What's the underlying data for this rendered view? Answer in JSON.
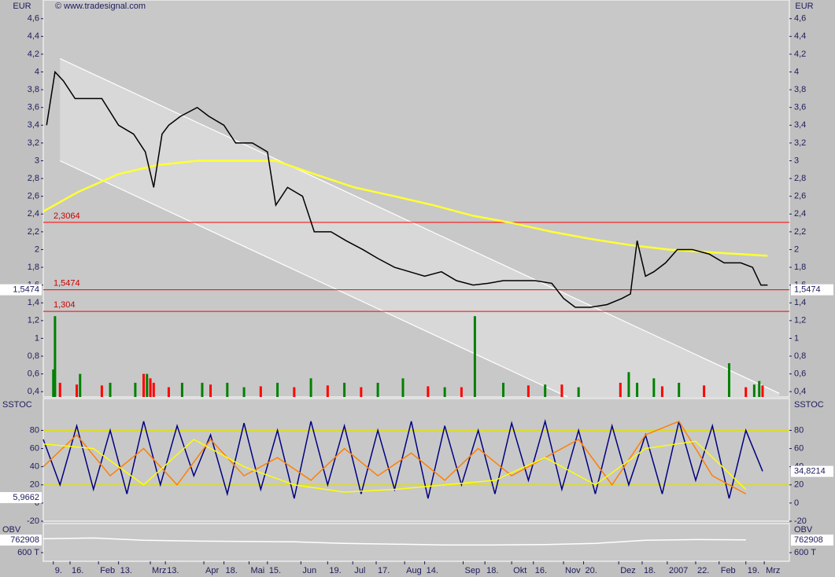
{
  "chart_data": [
    {
      "type": "line",
      "title": "© www.tradesignal.com",
      "ylabel": "EUR",
      "xlim": [
        0,
        446
      ],
      "ylim": [
        0.34,
        4.81
      ],
      "yticks": [
        {
          "value": 0.4,
          "label": "0,4"
        },
        {
          "value": 0.6,
          "label": "0,6"
        },
        {
          "value": 0.8,
          "label": "0,8"
        },
        1,
        {
          "value": 1.2,
          "label": "1,2"
        },
        {
          "value": 1.4,
          "label": "1,4"
        },
        {
          "value": 1.6,
          "label": "1,6"
        },
        {
          "value": 1.8,
          "label": "1,8"
        },
        2,
        {
          "value": 2.2,
          "label": "2,2"
        },
        {
          "value": 2.4,
          "label": "2,4"
        },
        {
          "value": 2.6,
          "label": "2,6"
        },
        {
          "value": 2.8,
          "label": "2,8"
        },
        3,
        {
          "value": 3.2,
          "label": "3,2"
        },
        {
          "value": 3.4,
          "label": "3,4"
        },
        {
          "value": 3.6,
          "label": "3,6"
        },
        {
          "value": 3.8,
          "label": "3,8"
        },
        4,
        {
          "value": 4.2,
          "label": "4,2"
        },
        {
          "value": 4.4,
          "label": "4,4"
        },
        {
          "value": 4.6,
          "label": "4,6"
        }
      ],
      "channel": {
        "x": [
          10,
          440
        ],
        "upper": [
          4.15,
          0.38
        ],
        "lower": [
          3.0,
          -0.77
        ]
      },
      "series": [
        {
          "color": "#ffff33",
          "x": [
            0,
            21,
            45,
            68,
            92,
            115,
            139,
            162,
            186,
            210,
            233,
            257,
            280,
            304,
            327,
            351,
            374,
            398,
            433
          ],
          "values": [
            2.43,
            2.65,
            2.85,
            2.95,
            3.0,
            3.0,
            3.0,
            2.85,
            2.7,
            2.6,
            2.5,
            2.38,
            2.3,
            2.2,
            2.12,
            2.05,
            2.0,
            1.97,
            1.93
          ]
        },
        {
          "color": "#000000",
          "x": [
            2,
            7,
            12,
            19,
            26,
            35,
            45,
            54,
            61,
            66,
            71,
            75,
            82,
            92,
            99,
            108,
            115,
            125,
            134,
            139,
            146,
            155,
            162,
            172,
            181,
            191,
            200,
            210,
            219,
            228,
            238,
            247,
            257,
            266,
            275,
            285,
            294,
            304,
            311,
            318,
            327,
            337,
            346,
            351,
            355,
            360,
            365,
            372,
            379,
            388,
            398,
            407,
            417,
            424,
            429,
            433
          ],
          "values": [
            3.4,
            4.0,
            3.9,
            3.7,
            3.7,
            3.7,
            3.4,
            3.3,
            3.1,
            2.7,
            3.3,
            3.4,
            3.5,
            3.6,
            3.5,
            3.4,
            3.2,
            3.2,
            3.1,
            2.5,
            2.7,
            2.6,
            2.2,
            2.2,
            2.1,
            2.0,
            1.9,
            1.8,
            1.75,
            1.7,
            1.75,
            1.65,
            1.6,
            1.62,
            1.65,
            1.65,
            1.65,
            1.62,
            1.45,
            1.35,
            1.35,
            1.38,
            1.45,
            1.5,
            2.1,
            1.7,
            1.75,
            1.85,
            2.0,
            2.0,
            1.95,
            1.85,
            1.85,
            1.8,
            1.6,
            1.6
          ]
        }
      ],
      "volume": [
        {
          "color": "#008000",
          "x": [
            6,
            7,
            22,
            40,
            55,
            62,
            83,
            95,
            110,
            120,
            140,
            160,
            180,
            200,
            215,
            240,
            258,
            275,
            300,
            320,
            350,
            355,
            365,
            380,
            410,
            425,
            428
          ],
          "values": [
            0.65,
            1.25,
            0.6,
            0.5,
            0.5,
            0.6,
            0.5,
            0.5,
            0.5,
            0.45,
            0.5,
            0.55,
            0.5,
            0.5,
            0.55,
            0.45,
            1.25,
            0.5,
            0.48,
            0.45,
            0.62,
            0.5,
            0.55,
            0.5,
            0.72,
            0.48,
            0.52
          ]
        },
        {
          "color": "#ff0000",
          "x": [
            10,
            20,
            35,
            60,
            64,
            66,
            75,
            100,
            130,
            150,
            170,
            190,
            230,
            250,
            290,
            310,
            345,
            370,
            395,
            420,
            430
          ],
          "values": [
            0.5,
            0.48,
            0.47,
            0.6,
            0.55,
            0.5,
            0.45,
            0.48,
            0.46,
            0.45,
            0.47,
            0.45,
            0.46,
            0.45,
            0.47,
            0.48,
            0.5,
            0.46,
            0.47,
            0.45,
            0.47
          ]
        }
      ],
      "levels": [
        {
          "value": 2.3064,
          "label": "2,3064"
        },
        {
          "value": 1.5474,
          "label": "1,5474"
        },
        {
          "value": 1.304,
          "label": "1,304"
        }
      ],
      "last": {
        "value": 1.5474,
        "label": "1,5474"
      }
    },
    {
      "type": "line",
      "ylabel": "SSTOC",
      "ylim": [
        -20,
        115
      ],
      "yticks": [
        {
          "value": -20,
          "label": "-20"
        },
        0,
        20,
        40,
        60,
        80
      ],
      "levels": [
        20,
        80
      ],
      "series": [
        {
          "color": "#000080",
          "x": [
            0,
            10,
            20,
            30,
            40,
            50,
            60,
            70,
            80,
            90,
            100,
            110,
            120,
            130,
            140,
            150,
            160,
            170,
            180,
            190,
            200,
            210,
            220,
            230,
            240,
            250,
            260,
            270,
            280,
            290,
            300,
            310,
            320,
            330,
            340,
            350,
            360,
            370,
            380,
            390,
            400,
            410,
            420,
            430
          ],
          "values": [
            70,
            20,
            85,
            15,
            80,
            10,
            90,
            20,
            85,
            30,
            75,
            10,
            88,
            15,
            80,
            5,
            90,
            20,
            85,
            10,
            80,
            15,
            90,
            5,
            85,
            20,
            80,
            10,
            88,
            25,
            90,
            15,
            80,
            10,
            85,
            20,
            75,
            10,
            90,
            25,
            85,
            5,
            80,
            35
          ]
        },
        {
          "color": "#ff8000",
          "x": [
            0,
            20,
            40,
            60,
            80,
            100,
            120,
            140,
            160,
            180,
            200,
            220,
            240,
            260,
            280,
            300,
            320,
            340,
            360,
            380,
            400,
            420
          ],
          "values": [
            40,
            75,
            30,
            60,
            20,
            70,
            30,
            50,
            25,
            60,
            30,
            55,
            25,
            60,
            30,
            50,
            70,
            20,
            75,
            90,
            30,
            10
          ]
        },
        {
          "color": "#ffff00",
          "x": [
            0,
            30,
            60,
            90,
            120,
            150,
            180,
            210,
            240,
            270,
            300,
            330,
            360,
            390,
            420
          ],
          "values": [
            65,
            60,
            20,
            70,
            40,
            20,
            12,
            15,
            20,
            25,
            50,
            20,
            60,
            68,
            15
          ]
        }
      ],
      "right_tag": {
        "value": 34.8214,
        "label": "34,8214"
      },
      "left_tag": {
        "value": 5.9662,
        "label": "5,9662"
      }
    },
    {
      "type": "line",
      "ylabel": "OBV",
      "ylim": [
        488000,
        977000
      ],
      "yticks": [
        {
          "value": 600000,
          "label": "600 T"
        }
      ],
      "series": [
        {
          "color": "#ffffff",
          "x": [
            0,
            30,
            60,
            90,
            120,
            150,
            180,
            210,
            240,
            270,
            300,
            330,
            360,
            390,
            420
          ],
          "values": [
            780000,
            790000,
            760000,
            750000,
            745000,
            740000,
            720000,
            710000,
            700000,
            700000,
            705000,
            720000,
            760000,
            770000,
            765000
          ]
        }
      ],
      "last": 762908,
      "xticks": [
        {
          "value": 6,
          "label": "9."
        },
        {
          "value": 16,
          "label": "16."
        },
        {
          "value": 33,
          "label": "Feb"
        },
        {
          "value": 45,
          "label": "13."
        },
        {
          "value": 64,
          "label": "Mrz"
        },
        {
          "value": 73,
          "label": "13."
        },
        {
          "value": 96,
          "label": "Apr"
        },
        {
          "value": 108,
          "label": "18."
        },
        {
          "value": 123,
          "label": "Mai"
        },
        {
          "value": 134,
          "label": "15."
        },
        {
          "value": 154,
          "label": "Jun"
        },
        {
          "value": 170,
          "label": "19."
        },
        {
          "value": 185,
          "label": "Jul"
        },
        {
          "value": 199,
          "label": "17."
        },
        {
          "value": 216,
          "label": "Aug"
        },
        {
          "value": 228,
          "label": "14."
        },
        {
          "value": 251,
          "label": "Sep"
        },
        {
          "value": 264,
          "label": "18."
        },
        {
          "value": 280,
          "label": "Okt"
        },
        {
          "value": 293,
          "label": "16."
        },
        {
          "value": 311,
          "label": "Nov"
        },
        {
          "value": 323,
          "label": "20."
        },
        {
          "value": 344,
          "label": "Dez"
        },
        {
          "value": 358,
          "label": "18."
        },
        {
          "value": 373,
          "label": "2007"
        },
        {
          "value": 390,
          "label": "22."
        },
        {
          "value": 404,
          "label": "Feb"
        },
        {
          "value": 420,
          "label": "19."
        },
        {
          "value": 431,
          "label": "Mrz"
        }
      ]
    }
  ]
}
